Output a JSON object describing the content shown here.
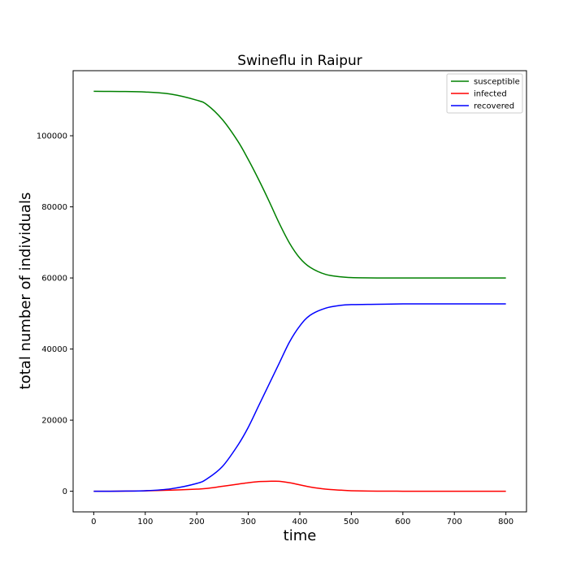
{
  "chart_data": {
    "type": "line",
    "title": "Swineflu in Raipur",
    "xlabel": "time",
    "ylabel": "total number of individuals",
    "xlim": [
      -40,
      840
    ],
    "ylim": [
      -5800,
      118300
    ],
    "xticks": [
      0,
      100,
      200,
      300,
      400,
      500,
      600,
      700,
      800
    ],
    "yticks": [
      0,
      20000,
      40000,
      60000,
      80000,
      100000
    ],
    "grid": false,
    "legend_position": "top-right",
    "x": [
      0,
      50,
      100,
      150,
      200,
      220,
      250,
      280,
      300,
      320,
      340,
      360,
      380,
      400,
      420,
      450,
      480,
      500,
      550,
      600,
      650,
      700,
      750,
      800
    ],
    "series": [
      {
        "name": "susceptible",
        "color": "#008000",
        "values": [
          112500,
          112450,
          112300,
          111700,
          110000,
          108700,
          104500,
          98400,
          93300,
          87700,
          81700,
          75400,
          69800,
          65600,
          63000,
          61000,
          60300,
          60100,
          60000,
          60000,
          60000,
          60000,
          60000,
          60000
        ]
      },
      {
        "name": "infected",
        "color": "#ff0000",
        "values": [
          0,
          20,
          100,
          300,
          600,
          800,
          1400,
          2000,
          2400,
          2700,
          2800,
          2800,
          2400,
          1800,
          1200,
          600,
          300,
          150,
          40,
          10,
          5,
          2,
          1,
          0
        ]
      },
      {
        "name": "recovered",
        "color": "#0000ff",
        "values": [
          0,
          30,
          150,
          700,
          2200,
          3500,
          7000,
          13000,
          18000,
          24000,
          30000,
          36000,
          42000,
          46500,
          49500,
          51500,
          52300,
          52500,
          52600,
          52700,
          52700,
          52700,
          52700,
          52700
        ]
      }
    ]
  }
}
